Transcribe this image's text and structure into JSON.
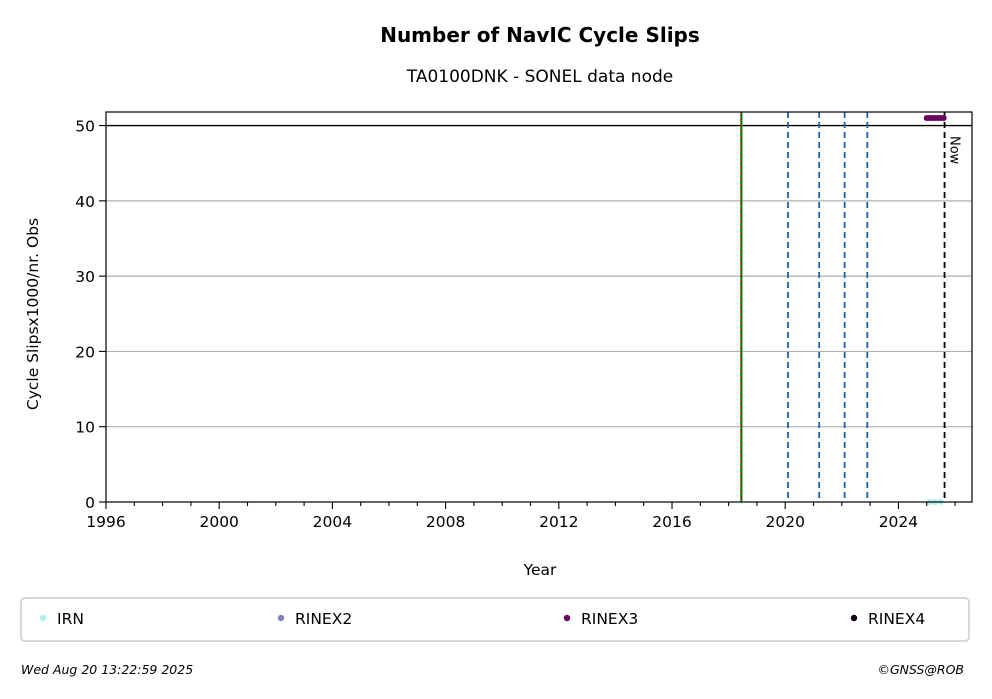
{
  "chart_data": {
    "type": "scatter",
    "title": "Number of NavIC Cycle Slips",
    "subtitle": "TA0100DNK - SONEL data node",
    "xlabel": "Year",
    "ylabel": "Cycle Slipsx1000/nr. Obs",
    "xlim": [
      1996,
      2026.6
    ],
    "ylim": [
      0,
      51.8
    ],
    "x_ticks": [
      1996,
      2000,
      2004,
      2008,
      2012,
      2016,
      2020,
      2024
    ],
    "x_tick_labels": [
      "1996",
      "2000",
      "2004",
      "2008",
      "2012",
      "2016",
      "2020",
      "2024"
    ],
    "y_ticks": [
      0,
      10,
      20,
      30,
      40,
      50
    ],
    "y_tick_labels": [
      "0",
      "10",
      "20",
      "30",
      "40",
      "50"
    ],
    "grid": "horizontal",
    "reference_line": {
      "y": 50,
      "color": "#000000"
    },
    "event_lines": [
      {
        "x": 2018.45,
        "color": "#008000",
        "style": "solid-with-red-dash"
      },
      {
        "x": 2020.1,
        "color": "#1f5fb0",
        "style": "dashed"
      },
      {
        "x": 2021.2,
        "color": "#1f5fb0",
        "style": "dashed"
      },
      {
        "x": 2022.1,
        "color": "#1f5fb0",
        "style": "dashed"
      },
      {
        "x": 2022.9,
        "color": "#1f5fb0",
        "style": "dashed"
      }
    ],
    "now_line": {
      "x": 2025.63,
      "label": "Now",
      "color": "#000000"
    },
    "series": [
      {
        "name": "IRN",
        "color": "#aef0f0",
        "points": [
          [
            2025.1,
            0
          ],
          [
            2025.3,
            0
          ],
          [
            2025.5,
            0
          ]
        ]
      },
      {
        "name": "RINEX2",
        "color": "#8080c0",
        "points": []
      },
      {
        "name": "RINEX3",
        "color": "#6a005f",
        "points": [
          [
            2025.0,
            51
          ],
          [
            2025.1,
            51
          ],
          [
            2025.2,
            51
          ],
          [
            2025.3,
            51
          ],
          [
            2025.4,
            51
          ],
          [
            2025.5,
            51
          ],
          [
            2025.6,
            51
          ]
        ]
      },
      {
        "name": "RINEX4",
        "color": "#1a0010",
        "points": []
      }
    ],
    "legend_position": "bottom"
  },
  "footer": {
    "timestamp": "Wed Aug 20 13:22:59 2025",
    "credit": "©GNSS@ROB"
  }
}
